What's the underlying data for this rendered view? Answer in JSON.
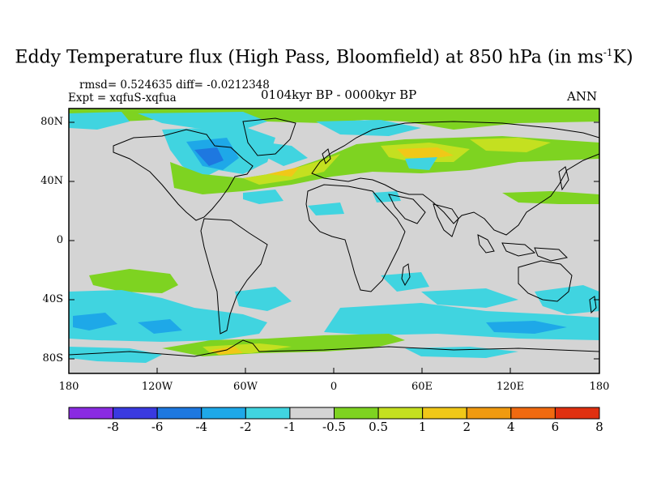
{
  "title": {
    "main": "Eddy Temperature flux (High Pass, Bloomfield) at 850 hPa (in ms",
    "exponent": "-1",
    "unit_tail": "K)"
  },
  "stats": "rmsd= 0.524635 diff= -0.0212348",
  "expt": "Expt = xqfuS-xqfua",
  "period": "0104kyr BP - 0000kyr BP",
  "season": "ANN",
  "y_ticks": [
    "80N",
    "40N",
    "0",
    "40S",
    "80S"
  ],
  "x_ticks": [
    "180",
    "120W",
    "60W",
    "0",
    "60E",
    "120E",
    "180"
  ],
  "colorbar": {
    "colors": [
      "#8a2be2",
      "#3a3ae0",
      "#1e78e0",
      "#1ea8e8",
      "#40d4e0",
      "#d4d4d4",
      "#7ed321",
      "#c4e020",
      "#f0c818",
      "#f09a10",
      "#f06a10",
      "#e03010"
    ],
    "labels": [
      "-8",
      "-6",
      "-4",
      "-2",
      "-1",
      "-0.5",
      "0.5",
      "1",
      "2",
      "4",
      "6",
      "8"
    ]
  }
}
